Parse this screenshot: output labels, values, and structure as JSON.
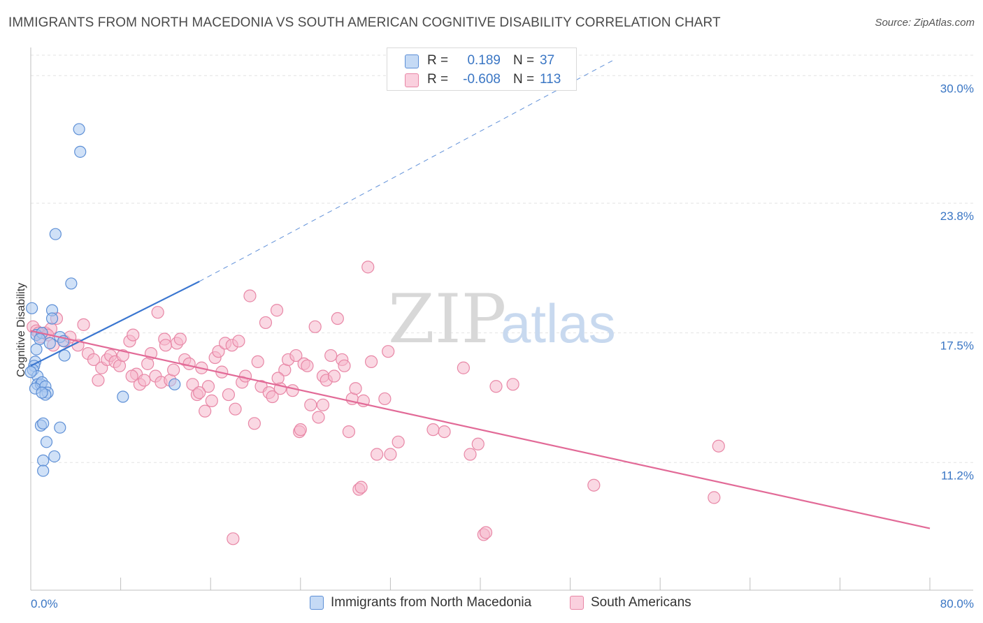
{
  "header": {
    "title": "IMMIGRANTS FROM NORTH MACEDONIA VS SOUTH AMERICAN COGNITIVE DISABILITY CORRELATION CHART",
    "source": "Source: ZipAtlas.com"
  },
  "watermark": {
    "part1": "ZIP",
    "part2": "atlas"
  },
  "stats": {
    "rows": [
      {
        "r_label": "R =",
        "r_value": "0.189",
        "n_label": "N =",
        "n_value": "37"
      },
      {
        "r_label": "R =",
        "r_value": "-0.608",
        "n_label": "N =",
        "n_value": "113"
      }
    ]
  },
  "legend": {
    "items": [
      {
        "label": "Immigrants from North Macedonia"
      },
      {
        "label": "South Americans"
      }
    ]
  },
  "colors": {
    "blue_fill": "#a9c9f0",
    "blue_stroke": "#5d8fd6",
    "blue_line": "#3a76d0",
    "pink_fill": "#f6b8cc",
    "pink_stroke": "#e887a6",
    "pink_line": "#e26a97",
    "tick_text": "#3a76c4"
  },
  "chart_data": {
    "type": "scatter",
    "title": "IMMIGRANTS FROM NORTH MACEDONIA VS SOUTH AMERICAN COGNITIVE DISABILITY CORRELATION CHART",
    "xlabel": "",
    "ylabel": "Cognitive Disability",
    "xlim": [
      0,
      80
    ],
    "ylim": [
      5.0,
      31.3
    ],
    "x_tick_labels": [
      "0.0%",
      "80.0%"
    ],
    "y_ticks": [
      {
        "value": 30.0,
        "label": "30.0%"
      },
      {
        "value": 23.8,
        "label": "23.8%"
      },
      {
        "value": 17.5,
        "label": "17.5%"
      },
      {
        "value": 11.2,
        "label": "11.2%"
      }
    ],
    "grid": "horizontal dashed",
    "legend_position": "bottom-center",
    "series": [
      {
        "name": "Immigrants from North Macedonia",
        "r": 0.189,
        "n": 37,
        "trend": {
          "x_start": 0.0,
          "y_start": 15.9,
          "x_solid_end": 15.0,
          "y_solid_end": 20.0,
          "x_dash_end": 52.0,
          "y_dash_end": 30.8
        },
        "points": [
          [
            0.1,
            18.7
          ],
          [
            4.3,
            27.4
          ],
          [
            4.4,
            26.3
          ],
          [
            2.2,
            22.3
          ],
          [
            3.6,
            19.9
          ],
          [
            1.9,
            18.6
          ],
          [
            1.9,
            18.2
          ],
          [
            0.5,
            17.4
          ],
          [
            1.0,
            17.5
          ],
          [
            0.8,
            17.2
          ],
          [
            2.6,
            17.3
          ],
          [
            1.7,
            17.0
          ],
          [
            2.9,
            17.1
          ],
          [
            3.0,
            16.4
          ],
          [
            0.5,
            16.7
          ],
          [
            0.4,
            16.1
          ],
          [
            0.3,
            15.9
          ],
          [
            0.2,
            15.7
          ],
          [
            0.6,
            15.4
          ],
          [
            0.6,
            15.0
          ],
          [
            0.9,
            15.0
          ],
          [
            1.0,
            15.1
          ],
          [
            0.4,
            14.8
          ],
          [
            1.3,
            14.9
          ],
          [
            1.5,
            14.6
          ],
          [
            1.3,
            14.5
          ],
          [
            1.0,
            14.6
          ],
          [
            12.8,
            15.0
          ],
          [
            8.2,
            14.4
          ],
          [
            0.9,
            13.0
          ],
          [
            1.1,
            13.1
          ],
          [
            2.6,
            12.9
          ],
          [
            1.4,
            12.2
          ],
          [
            2.1,
            11.5
          ],
          [
            1.1,
            11.3
          ],
          [
            1.1,
            10.8
          ],
          [
            0.0,
            15.6
          ]
        ]
      },
      {
        "name": "South Americans",
        "r": -0.608,
        "n": 113,
        "trend": {
          "x_start": 0.0,
          "y_start": 17.6,
          "x_end": 80.0,
          "y_end": 8.0
        },
        "points": [
          [
            0.2,
            17.8
          ],
          [
            0.5,
            17.6
          ],
          [
            0.9,
            17.3
          ],
          [
            1.3,
            17.5
          ],
          [
            1.8,
            17.7
          ],
          [
            2.3,
            18.2
          ],
          [
            3.0,
            17.1
          ],
          [
            3.5,
            17.3
          ],
          [
            4.2,
            16.9
          ],
          [
            4.7,
            17.9
          ],
          [
            5.1,
            16.5
          ],
          [
            5.6,
            16.2
          ],
          [
            6.0,
            15.2
          ],
          [
            6.3,
            15.8
          ],
          [
            6.8,
            16.2
          ],
          [
            7.1,
            16.4
          ],
          [
            7.5,
            16.1
          ],
          [
            7.9,
            15.9
          ],
          [
            8.2,
            16.4
          ],
          [
            8.8,
            17.1
          ],
          [
            9.1,
            17.4
          ],
          [
            9.4,
            15.5
          ],
          [
            9.7,
            15.0
          ],
          [
            10.1,
            15.2
          ],
          [
            10.4,
            16.0
          ],
          [
            10.7,
            16.5
          ],
          [
            11.1,
            15.4
          ],
          [
            11.3,
            18.5
          ],
          [
            11.6,
            15.1
          ],
          [
            11.9,
            17.2
          ],
          [
            12.4,
            15.2
          ],
          [
            12.7,
            15.7
          ],
          [
            13.0,
            17.0
          ],
          [
            13.3,
            17.2
          ],
          [
            13.7,
            16.2
          ],
          [
            14.1,
            16.0
          ],
          [
            14.4,
            15.0
          ],
          [
            14.8,
            14.5
          ],
          [
            15.2,
            15.8
          ],
          [
            15.5,
            13.7
          ],
          [
            15.8,
            14.9
          ],
          [
            16.1,
            14.2
          ],
          [
            16.4,
            16.3
          ],
          [
            16.7,
            16.6
          ],
          [
            17.0,
            15.6
          ],
          [
            17.3,
            17.0
          ],
          [
            17.6,
            14.5
          ],
          [
            17.9,
            16.9
          ],
          [
            18.2,
            13.8
          ],
          [
            18.5,
            17.1
          ],
          [
            18.8,
            15.1
          ],
          [
            19.1,
            15.4
          ],
          [
            19.5,
            19.3
          ],
          [
            19.9,
            13.1
          ],
          [
            20.2,
            16.1
          ],
          [
            20.5,
            14.9
          ],
          [
            20.9,
            18.0
          ],
          [
            21.2,
            14.6
          ],
          [
            21.5,
            14.4
          ],
          [
            21.9,
            18.6
          ],
          [
            22.2,
            14.8
          ],
          [
            22.6,
            15.7
          ],
          [
            22.9,
            16.2
          ],
          [
            23.3,
            14.7
          ],
          [
            23.6,
            16.4
          ],
          [
            23.9,
            12.7
          ],
          [
            24.3,
            16.0
          ],
          [
            24.6,
            15.9
          ],
          [
            24.9,
            14.0
          ],
          [
            25.3,
            17.8
          ],
          [
            25.6,
            13.4
          ],
          [
            26.0,
            15.4
          ],
          [
            26.3,
            15.2
          ],
          [
            26.7,
            16.4
          ],
          [
            27.0,
            15.4
          ],
          [
            27.3,
            18.2
          ],
          [
            27.7,
            16.2
          ],
          [
            27.9,
            15.9
          ],
          [
            28.3,
            12.7
          ],
          [
            28.6,
            14.3
          ],
          [
            28.9,
            14.8
          ],
          [
            29.2,
            9.9
          ],
          [
            29.4,
            10.0
          ],
          [
            29.6,
            14.2
          ],
          [
            30.0,
            20.7
          ],
          [
            30.3,
            16.1
          ],
          [
            30.8,
            11.6
          ],
          [
            31.5,
            14.3
          ],
          [
            31.8,
            16.6
          ],
          [
            32.0,
            11.6
          ],
          [
            32.7,
            12.2
          ],
          [
            35.8,
            12.8
          ],
          [
            36.8,
            12.7
          ],
          [
            38.5,
            15.8
          ],
          [
            39.1,
            11.6
          ],
          [
            39.8,
            12.1
          ],
          [
            40.3,
            7.7
          ],
          [
            40.5,
            7.8
          ],
          [
            41.4,
            14.9
          ],
          [
            42.9,
            15.0
          ],
          [
            50.1,
            10.1
          ],
          [
            60.8,
            9.5
          ],
          [
            61.2,
            12.0
          ],
          [
            0.7,
            17.5
          ],
          [
            1.5,
            17.4
          ],
          [
            2.0,
            16.9
          ],
          [
            12.0,
            16.9
          ],
          [
            18.0,
            7.5
          ],
          [
            24.0,
            12.8
          ],
          [
            26.0,
            14.0
          ],
          [
            15.0,
            14.6
          ],
          [
            9.0,
            15.4
          ],
          [
            22.0,
            15.3
          ]
        ]
      }
    ]
  }
}
